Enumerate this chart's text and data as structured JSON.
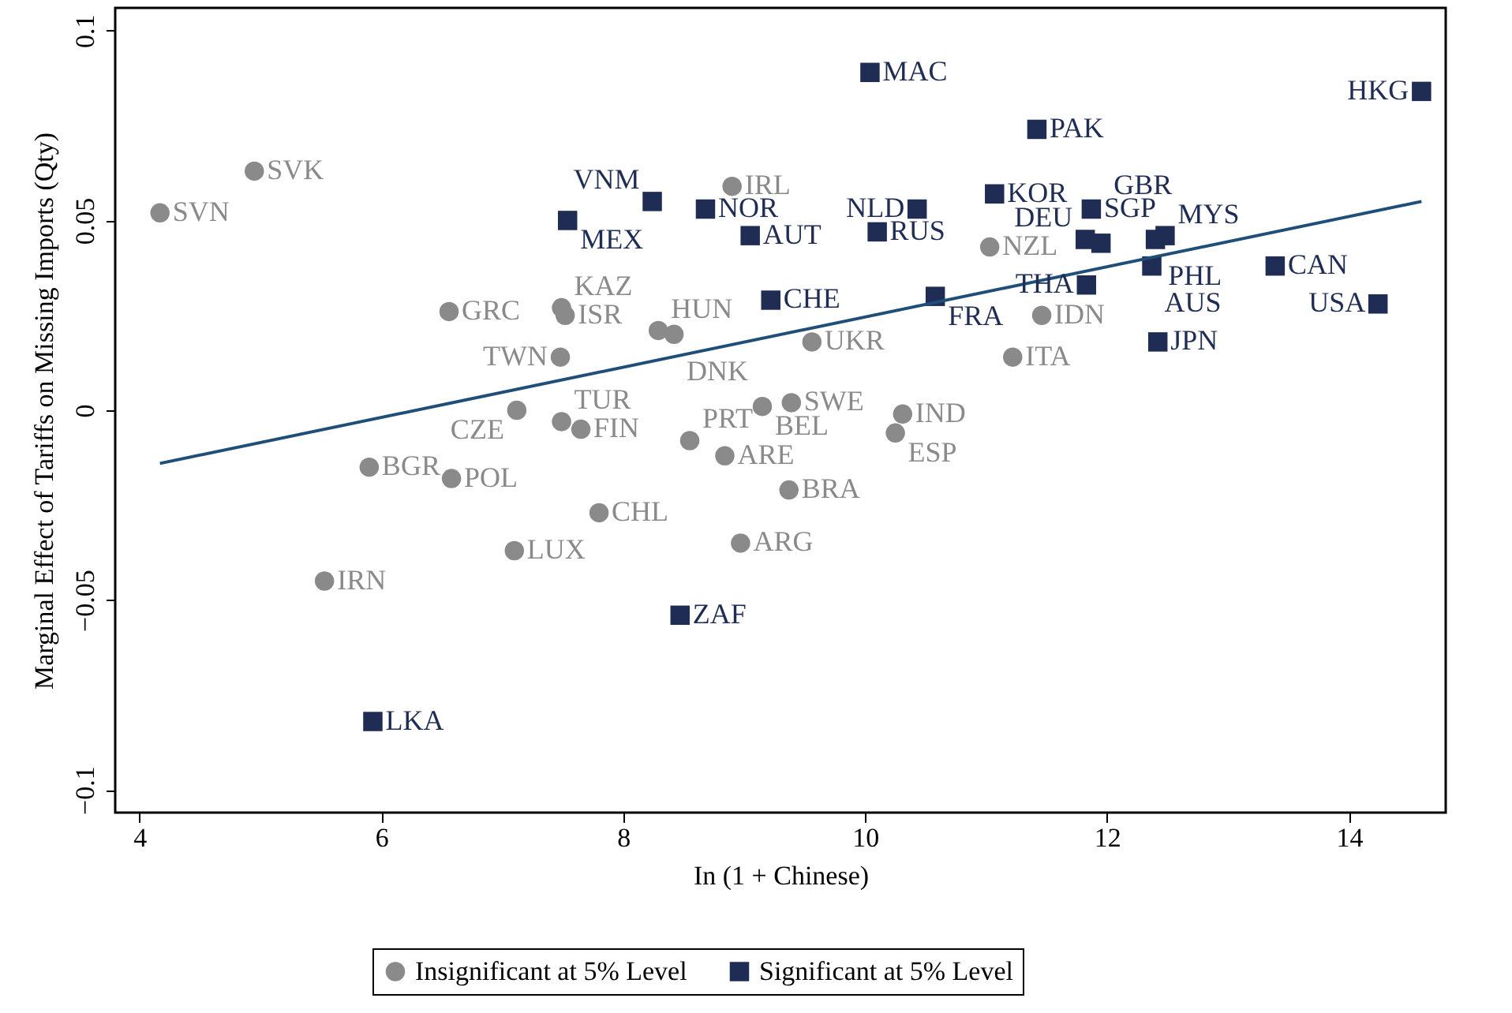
{
  "chart_data": {
    "type": "scatter",
    "xlabel": "In (1 + Chinese)",
    "ylabel": "Marginal Effect of Tariffs on Missing Imports (Qty)",
    "xlim": [
      3.8,
      14.8
    ],
    "ylim": [
      -0.106,
      0.106
    ],
    "xticks": [
      4,
      6,
      8,
      10,
      12,
      14
    ],
    "yticks": [
      {
        "value": -0.1,
        "label": "−0.1"
      },
      {
        "value": -0.05,
        "label": "−0.05"
      },
      0,
      0.05,
      0.1
    ],
    "grid": false,
    "legend": "bottom",
    "series": [
      {
        "name": "Insignificant at 5% Level",
        "color": "#8a8a8a",
        "marker": "circle",
        "x": [
          4.17,
          4.95,
          8.9,
          6.56,
          7.49,
          7.52,
          8.29,
          8.42,
          7.48,
          9.56,
          11.03,
          11.46,
          11.22,
          7.12,
          7.49,
          7.65,
          8.55,
          8.84,
          9.15,
          9.39,
          10.31,
          10.25,
          5.9,
          6.58,
          7.8,
          9.37,
          7.1,
          8.97,
          5.53
        ],
        "values": [
          0.052,
          0.063,
          0.059,
          0.026,
          0.027,
          0.025,
          0.021,
          0.02,
          0.014,
          0.018,
          0.043,
          0.025,
          0.014,
          0,
          -0.003,
          -0.005,
          -0.008,
          -0.012,
          0.001,
          0.002,
          -0.001,
          -0.006,
          -0.015,
          -0.018,
          -0.027,
          -0.021,
          -0.037,
          -0.035,
          -0.045
        ],
        "value_labels": [
          "SVN",
          "SVK",
          "IRL",
          "GRC",
          "KAZ",
          "ISR",
          "HUN",
          "DNK",
          "TWN",
          "UKR",
          "NZL",
          "IDN",
          "ITA",
          "CZE",
          "TUR",
          "FIN",
          "PRT",
          "ARE",
          "BEL",
          "SWE",
          "IND",
          "ESP",
          "BGR",
          "POL",
          "CHL",
          "BRA",
          "LUX",
          "ARG",
          "IRN"
        ]
      },
      {
        "name": "Significant at 5% Level",
        "color": "#1f2d55",
        "marker": "square",
        "x": [
          10.04,
          14.6,
          11.42,
          11.07,
          10.43,
          11.87,
          8.24,
          8.68,
          7.54,
          9.05,
          10.1,
          11.82,
          11.95,
          12.4,
          12.48,
          12.37,
          13.39,
          11.83,
          14.24,
          12.42,
          10.58,
          9.22,
          8.47,
          5.93
        ],
        "values": [
          0.089,
          0.084,
          0.074,
          0.057,
          0.053,
          0.053,
          0.055,
          0.053,
          0.05,
          0.046,
          0.047,
          0.045,
          0.044,
          0.045,
          0.046,
          0.038,
          0.038,
          0.033,
          0.028,
          0.018,
          0.03,
          0.029,
          -0.054,
          -0.082
        ],
        "value_labels": [
          "MAC",
          "HKG",
          "PAK",
          "KOR",
          "NLD",
          "SGP",
          "VNM",
          "NOR",
          "MEX",
          "AUT",
          "RUS",
          "DEU",
          "GBR",
          "PHL",
          "MYS",
          "AUS",
          "CAN",
          "THA",
          "USA",
          "JPN",
          "FRA",
          "CHE",
          "ZAF",
          "LKA"
        ]
      },
      {
        "type": "line",
        "color": "#1f4e79",
        "x": [
          4.17,
          14.6
        ],
        "values": [
          -0.014,
          0.055
        ]
      }
    ]
  }
}
